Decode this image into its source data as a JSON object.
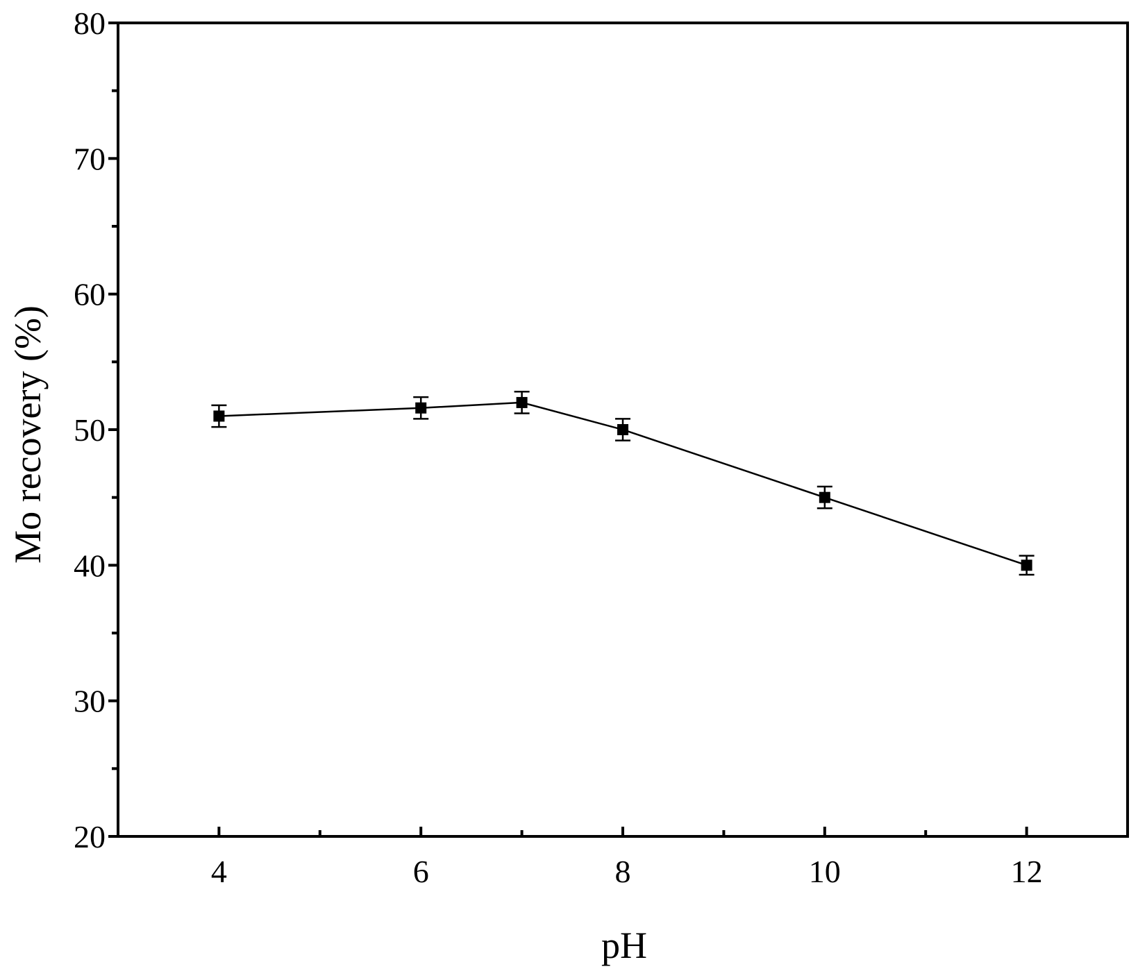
{
  "chart_data": {
    "type": "line",
    "title": "",
    "xlabel": "pH",
    "ylabel": "Mo recovery (%)",
    "xlim": [
      3,
      13
    ],
    "ylim": [
      20,
      80
    ],
    "x_ticks": [
      4,
      6,
      8,
      10,
      12
    ],
    "x_minor_ticks": [
      5,
      7,
      9,
      11
    ],
    "y_ticks": [
      20,
      30,
      40,
      50,
      60,
      70,
      80
    ],
    "y_minor_ticks": [
      25,
      35,
      45,
      55,
      65,
      75
    ],
    "grid": false,
    "legend": "none",
    "series": [
      {
        "marker": "square",
        "color": "#000000",
        "x": [
          4,
          6,
          7,
          8,
          10,
          12
        ],
        "y": [
          51.0,
          51.6,
          52.0,
          50.0,
          45.0,
          40.0
        ],
        "error": [
          0.8,
          0.8,
          0.8,
          0.8,
          0.8,
          0.7
        ]
      }
    ]
  }
}
